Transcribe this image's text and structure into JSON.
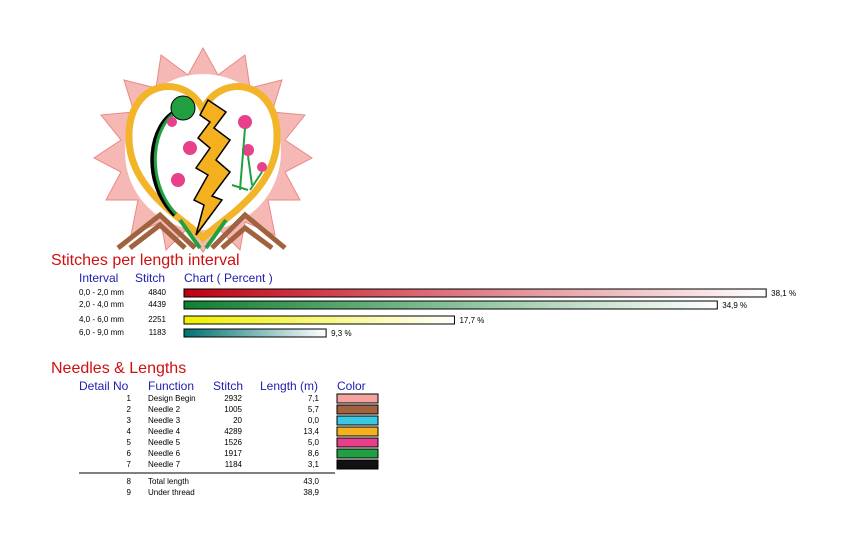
{
  "intervals": {
    "title": "Stitches per length interval",
    "columns": [
      "Interval",
      "Stitch",
      "Chart ( Percent )"
    ],
    "rows": [
      {
        "interval": "0,0 - 2,0 mm",
        "stitch": 4840,
        "percent": 38.1,
        "percent_label": "38,1 %",
        "color": "#c00010"
      },
      {
        "interval": "2,0 - 4,0 mm",
        "stitch": 4439,
        "percent": 34.9,
        "percent_label": "34,9 %",
        "color": "#108030"
      },
      {
        "interval": "4,0 - 6,0 mm",
        "stitch": 2251,
        "percent": 17.7,
        "percent_label": "17,7 %",
        "color": "#f0f000"
      },
      {
        "interval": "6,0 - 9,0 mm",
        "stitch": 1183,
        "percent": 9.3,
        "percent_label": "9,3 %",
        "color": "#007070"
      }
    ]
  },
  "needles": {
    "title": "Needles & Lengths",
    "columns": [
      "Detail No",
      "Function",
      "Stitch",
      "Length (m)",
      "Color"
    ],
    "rows": [
      {
        "no": 1,
        "function": "Design Begin",
        "stitch": 2932,
        "length": "7,1",
        "color": "#f4a3a0"
      },
      {
        "no": 2,
        "function": "Needle 2",
        "stitch": 1005,
        "length": "5,7",
        "color": "#a0623f"
      },
      {
        "no": 3,
        "function": "Needle 3",
        "stitch": 20,
        "length": "0,0",
        "color": "#3cc8e0"
      },
      {
        "no": 4,
        "function": "Needle 4",
        "stitch": 4289,
        "length": "13,4",
        "color": "#f5b020"
      },
      {
        "no": 5,
        "function": "Needle 5",
        "stitch": 1526,
        "length": "5,0",
        "color": "#e8408a"
      },
      {
        "no": 6,
        "function": "Needle 6",
        "stitch": 1917,
        "length": "8,6",
        "color": "#20a040"
      },
      {
        "no": 7,
        "function": "Needle 7",
        "stitch": 1184,
        "length": "3,1",
        "color": "#111111"
      }
    ],
    "totals": [
      {
        "no": 8,
        "function": "Total length",
        "length": "43,0"
      },
      {
        "no": 9,
        "function": "Under thread",
        "length": "38,9"
      }
    ]
  }
}
